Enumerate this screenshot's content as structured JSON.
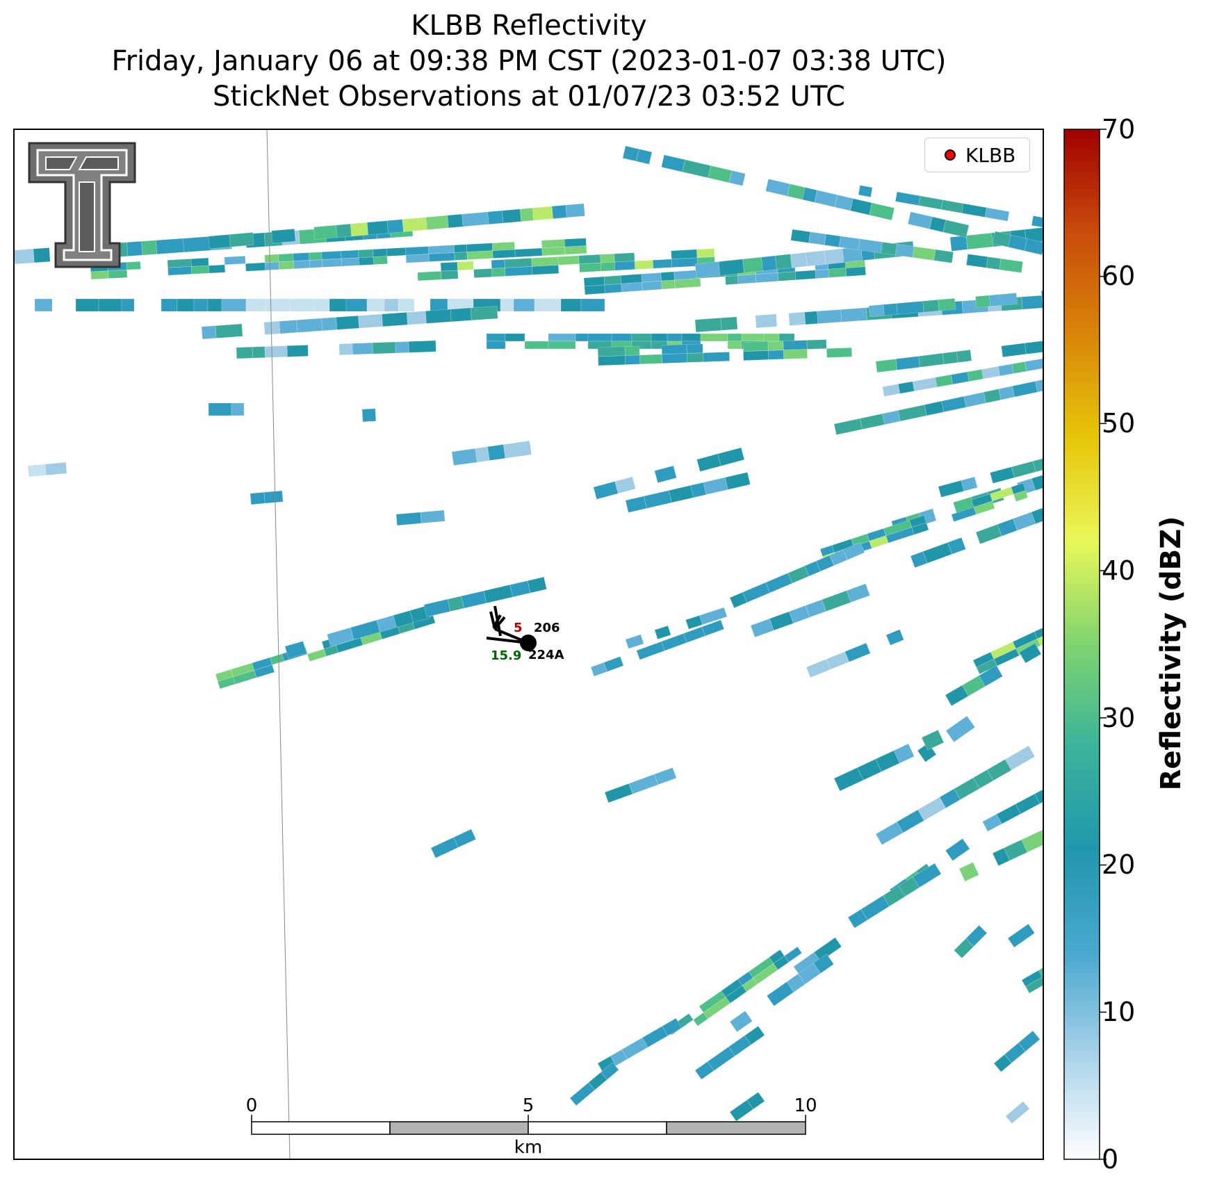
{
  "title": {
    "line1": "KLBB Reflectivity",
    "line2": "Friday, January 06 at 09:38 PM CST (2023-01-07 03:38 UTC)",
    "line3": "StickNet Observations at 01/07/23 03:52 UTC"
  },
  "legend": {
    "label": "KLBB",
    "marker_color": "#ff0000"
  },
  "colorbar": {
    "label": "Reflectivity (dBZ)",
    "ticks": [
      "0",
      "10",
      "20",
      "30",
      "40",
      "50",
      "60",
      "70"
    ],
    "range": [
      0,
      70
    ],
    "stops": [
      "#ffffff",
      "#a9d3ea",
      "#4aa8cf",
      "#2197ad",
      "#3bb39a",
      "#7fd46f",
      "#e9f75a",
      "#e7c60a",
      "#d9860a",
      "#c94c0c",
      "#a00000"
    ]
  },
  "scale_bar": {
    "ticks": [
      "0",
      "5",
      "10"
    ],
    "unit": "km"
  },
  "stations": [
    {
      "id": "206",
      "temp": "5",
      "temp_color": "#b00000"
    },
    {
      "id": "224A",
      "temp": "15.9",
      "temp_color": "#006400"
    }
  ]
}
